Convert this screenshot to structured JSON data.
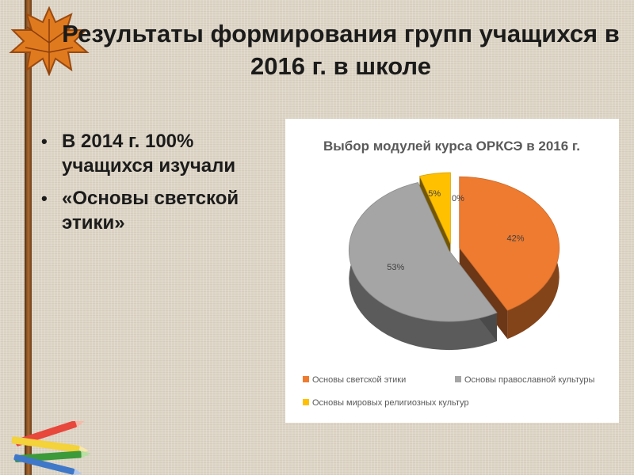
{
  "slide": {
    "title": "Результаты формирования групп учащихся в 2016 г. в школе",
    "bullets": [
      "В 2014 г. 100% учащихся изучали",
      "«Основы светской этики»"
    ]
  },
  "icons": [
    "autumn-leaf-icon",
    "crayons-icon"
  ],
  "chart_data": {
    "type": "pie",
    "style": "3d-exploded",
    "title": "Выбор модулей курса ОРКСЭ в 2016 г.",
    "categories": [
      "Основы светской этики",
      "Основы православной культуры",
      "Основы мировых религиозных культур",
      ""
    ],
    "values": [
      42,
      53,
      5,
      0
    ],
    "labels": [
      "42%",
      "53%",
      "5%",
      "0%"
    ],
    "colors": [
      "#ee7b30",
      "#a5a5a5",
      "#ffc000",
      "#4472c4"
    ],
    "legend_position": "bottom"
  }
}
